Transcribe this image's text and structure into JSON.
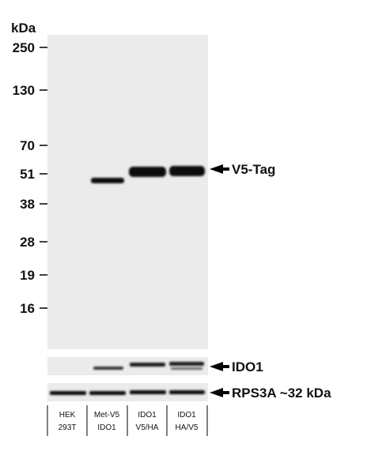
{
  "unit": "kDa",
  "markers": [
    "250",
    "130",
    "70",
    "51",
    "38",
    "28",
    "19",
    "16"
  ],
  "panels": [
    {
      "label": "V5-Tag"
    },
    {
      "label": "IDO1"
    },
    {
      "label": "RPS3A ~32 kDa"
    }
  ],
  "lanes": [
    [
      "HEK",
      "293T"
    ],
    [
      "Met-V5",
      "IDO1"
    ],
    [
      "IDO1",
      "V5/HA"
    ],
    [
      "IDO1",
      "HA/V5"
    ]
  ]
}
